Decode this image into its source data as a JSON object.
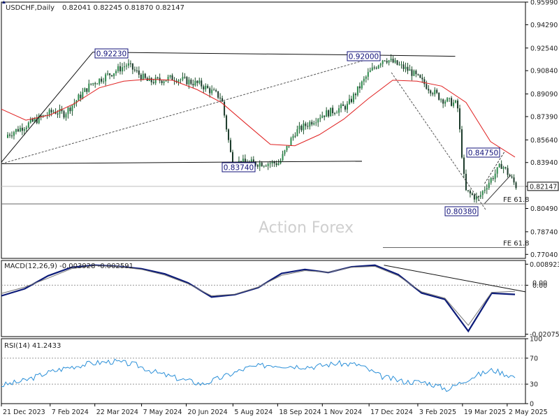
{
  "chart_data": [
    {
      "type": "candlestick",
      "symbol_label": "USDCHF,Daily",
      "ohlc_label": "0.82041 0.82245 0.81870 0.82147",
      "last_price": "0.82147",
      "watermark": "Action Forex",
      "ylim": [
        0.7674,
        0.9599
      ],
      "y_ticks": [
        "0.95990",
        "0.94290",
        "0.92540",
        "0.90840",
        "0.89090",
        "0.87390",
        "0.85640",
        "0.83940",
        "0.82147",
        "0.80490",
        "0.78740",
        "0.77040"
      ],
      "x_ticks": [
        "21 Dec 2023",
        "7 Feb 2024",
        "22 Mar 2024",
        "7 May 2024",
        "20 Jun 2024",
        "5 Aug 2024",
        "18 Sep 2024",
        "1 Nov 2024",
        "17 Dec 2024",
        "3 Feb 2025",
        "19 Mar 2025",
        "2 May 2025"
      ],
      "annotations": [
        {
          "text": "0.92230",
          "date": "2024-03-20",
          "value": 0.9223
        },
        {
          "text": "0.92000",
          "date": "2024-12-30",
          "value": 0.92
        },
        {
          "text": "0.83740",
          "date": "2024-08-05",
          "value": 0.8374
        },
        {
          "text": "0.84750",
          "date": "2025-04-21",
          "value": 0.8475
        },
        {
          "text": "0.80380",
          "date": "2025-04-11",
          "value": 0.8038
        },
        {
          "text": "FE 61.8",
          "value": 0.8083
        },
        {
          "text": "FE 61.8",
          "value": 0.7755
        }
      ],
      "series": [
        {
          "name": "",
          "kind": "moving-average",
          "color": "#e02020",
          "values": [
            0.8795,
            0.8712,
            0.8752,
            0.8838,
            0.8955,
            0.9005,
            0.902,
            0.9012,
            0.8942,
            0.8844,
            0.8686,
            0.853,
            0.852,
            0.8603,
            0.872,
            0.8873,
            0.9012,
            0.9005,
            0.8968,
            0.8845,
            0.8551,
            0.8435
          ]
        }
      ],
      "trendlines": [
        {
          "from": [
            "2023-12-21",
            0.8396
          ],
          "to": [
            "2024-03-20",
            0.9223
          ]
        },
        {
          "from": [
            "2024-03-20",
            0.9223
          ],
          "to": [
            "2024-12-30",
            0.92
          ]
        },
        {
          "from": [
            "2023-12-21",
            0.8385
          ],
          "to": [
            "2024-12-10",
            0.8404
          ]
        },
        {
          "from": [
            "2023-12-21",
            0.8385
          ],
          "to": [
            "2024-12-30",
            0.92
          ],
          "dashed": true
        },
        {
          "from": [
            "2025-01-08",
            0.907
          ],
          "to": [
            "2025-04-11",
            0.8038
          ],
          "dashed": true
        }
      ]
    },
    {
      "type": "line",
      "label": "MACD(12,26,9) -0.003928 -0.002591",
      "ylim": [
        -0.0218,
        0.0105
      ],
      "y_ticks": [
        "0.008923",
        "0.00",
        "0.00",
        "-0.020759"
      ],
      "series": [
        {
          "name": "",
          "color": "#0b1a78",
          "values": [
            -0.0045,
            -0.0015,
            0.004,
            0.0076,
            0.0085,
            0.008,
            0.007,
            0.0048,
            0.001,
            -0.005,
            -0.004,
            -0.001,
            0.005,
            0.0067,
            0.0054,
            0.0078,
            0.0085,
            0.0045,
            -0.0033,
            -0.006,
            -0.0195,
            -0.0034,
            -0.0039
          ]
        },
        {
          "name": "",
          "color": "#777777",
          "values": [
            -0.0035,
            -0.0008,
            0.003,
            0.007,
            0.0083,
            0.0079,
            0.0067,
            0.0043,
            0.0006,
            -0.0045,
            -0.0038,
            -0.0008,
            0.0042,
            0.0062,
            0.0055,
            0.0076,
            0.008,
            0.004,
            -0.0028,
            -0.0055,
            -0.017,
            -0.003,
            -0.0026
          ]
        }
      ]
    },
    {
      "type": "line",
      "label": "RSI(14) 41.2433",
      "ylim": [
        0,
        100
      ],
      "y_ticks": [
        "100",
        "70",
        "30",
        "0"
      ],
      "series": [
        {
          "name": "",
          "color": "#2a8fd8",
          "values": [
            28,
            35,
            47,
            56,
            62,
            65,
            60,
            47,
            38,
            30,
            42,
            55,
            60,
            58,
            57,
            62,
            60,
            42,
            34,
            33,
            22,
            40,
            52,
            41
          ]
        }
      ]
    }
  ]
}
